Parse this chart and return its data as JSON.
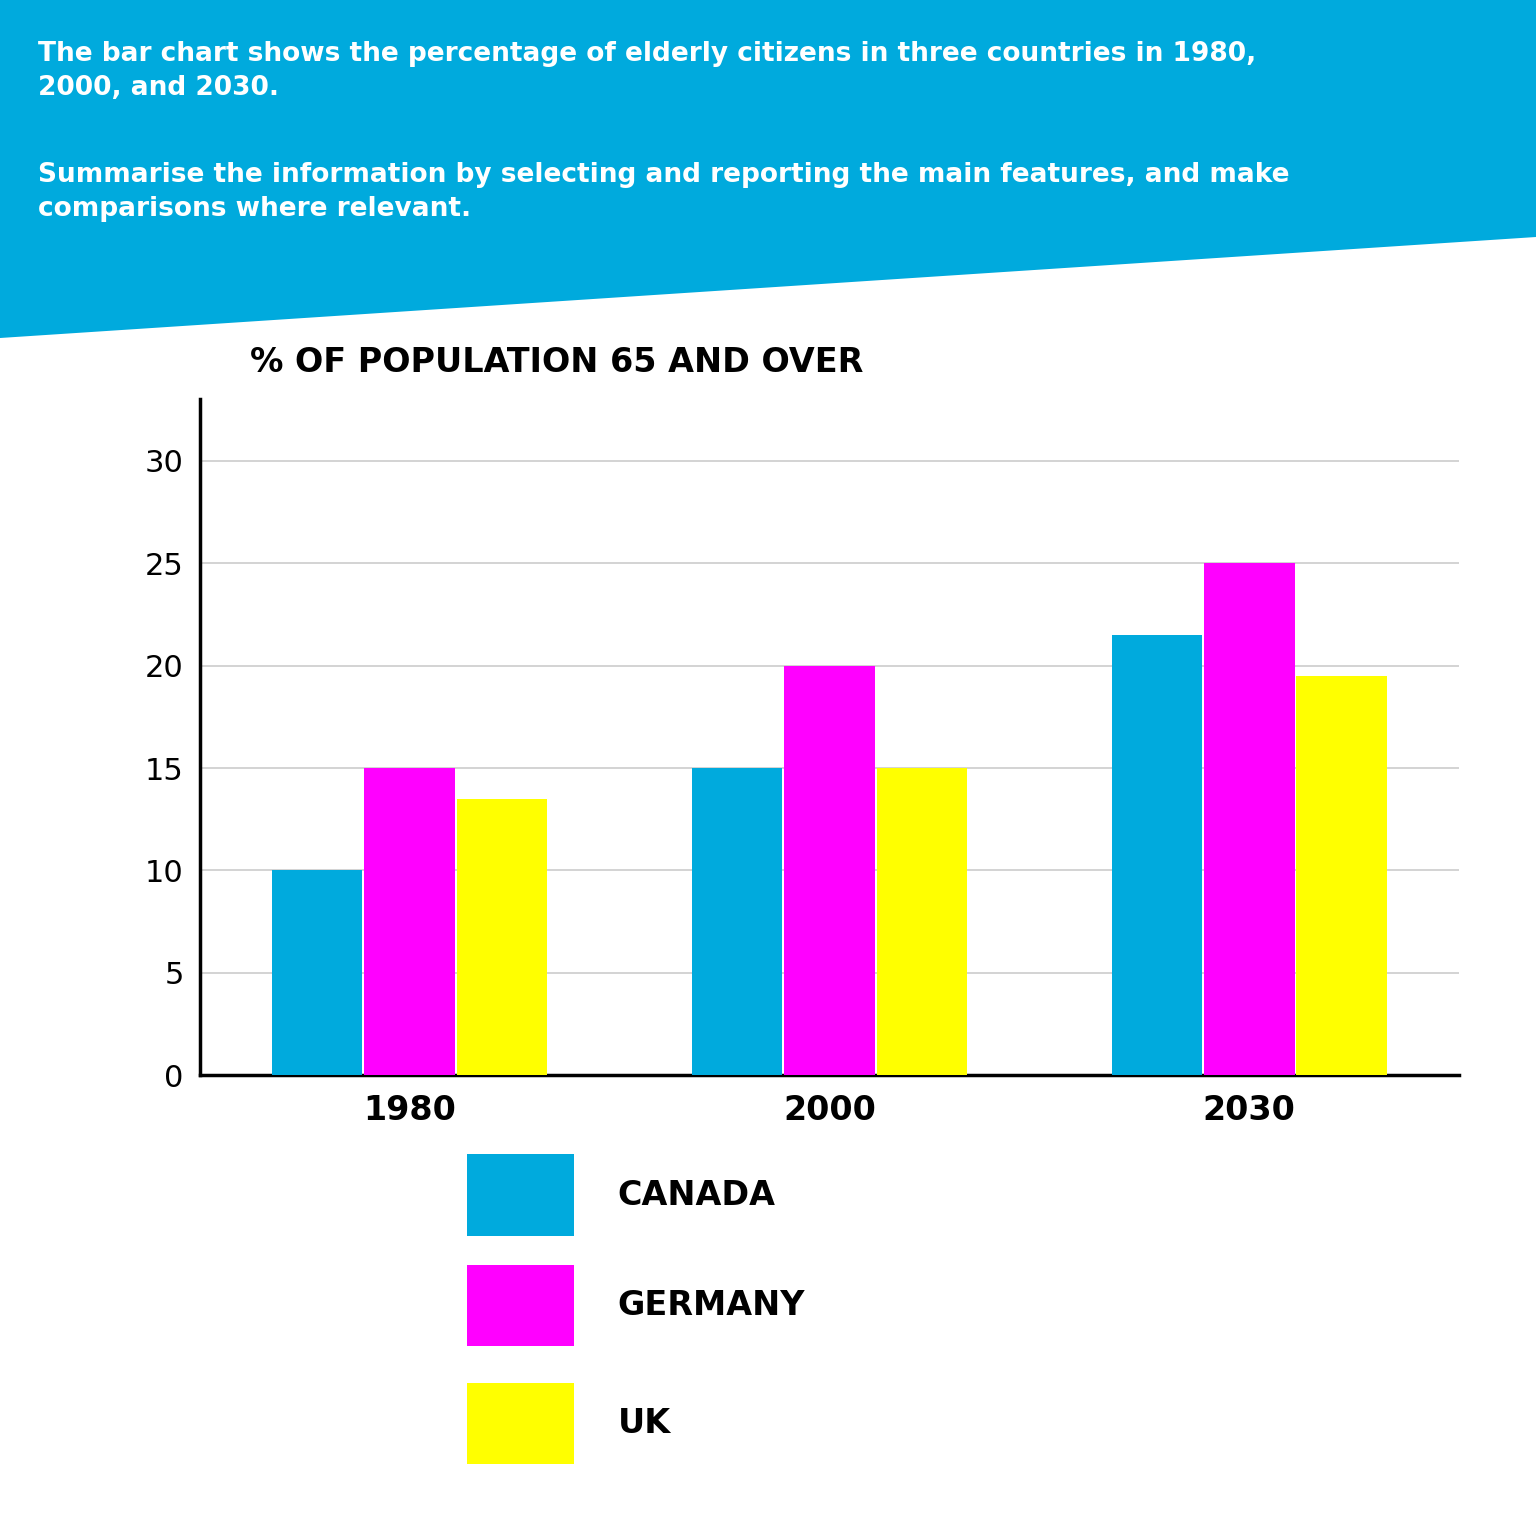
{
  "title": "% OF POPULATION 65 AND OVER",
  "years": [
    "1980",
    "2000",
    "2030"
  ],
  "countries": [
    "CANADA",
    "GERMANY",
    "UK"
  ],
  "values": {
    "CANADA": [
      10,
      15,
      21.5
    ],
    "GERMANY": [
      15,
      20,
      25
    ],
    "UK": [
      13.5,
      15,
      19.5
    ]
  },
  "colors": {
    "CANADA": "#00AADD",
    "GERMANY": "#FF00FF",
    "UK": "#FFFF00"
  },
  "ylim": [
    0,
    33
  ],
  "yticks": [
    0,
    5,
    10,
    15,
    20,
    25,
    30
  ],
  "bar_width": 0.22,
  "background_color": "#FFFFFF",
  "header_bg_color": "#00AADD",
  "header_para1": "The bar chart shows the percentage of elderly citizens in three countries in 1980,\n2000, and 2030.",
  "header_para2": "Summarise the information by selecting and reporting the main features, and make\ncomparisons where relevant.",
  "axis_title_fontsize": 24,
  "tick_fontsize": 22,
  "legend_fontsize": 22,
  "header_fontsize": 19
}
